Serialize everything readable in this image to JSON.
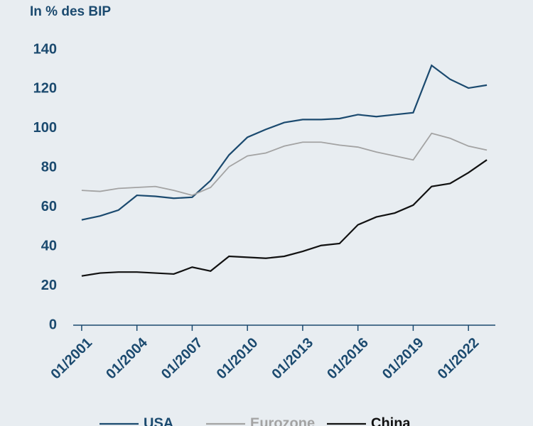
{
  "chart_data": {
    "type": "line",
    "y_label": "In % des BIP",
    "x": [
      2001,
      2002,
      2003,
      2004,
      2005,
      2006,
      2007,
      2008,
      2009,
      2010,
      2011,
      2012,
      2013,
      2014,
      2015,
      2016,
      2017,
      2018,
      2019,
      2020,
      2021,
      2022,
      2023
    ],
    "xlim": [
      2000.54,
      2023.46
    ],
    "xticks": [
      {
        "value": 2001,
        "label": "01/2001"
      },
      {
        "value": 2004,
        "label": "01/2004"
      },
      {
        "value": 2007,
        "label": "01/2007"
      },
      {
        "value": 2010,
        "label": "01/2010"
      },
      {
        "value": 2013,
        "label": "01/2013"
      },
      {
        "value": 2016,
        "label": "01/2016"
      },
      {
        "value": 2019,
        "label": "01/2019"
      },
      {
        "value": 2022,
        "label": "01/2022"
      }
    ],
    "ylim": [
      0,
      140
    ],
    "yticks": [
      0,
      20,
      40,
      60,
      80,
      100,
      120,
      140
    ],
    "series": [
      {
        "name": "USA",
        "color": "#1b4a6f",
        "values": [
          53.5,
          55.5,
          58.5,
          66,
          65.5,
          64.5,
          65,
          73.5,
          86.5,
          95.5,
          99.5,
          103,
          104.5,
          104.5,
          105,
          107,
          106,
          107,
          108,
          132,
          125,
          120.5,
          122
        ]
      },
      {
        "name": "Eurozone",
        "color": "#a3a3a3",
        "values": [
          68.5,
          68,
          69.5,
          70,
          70.5,
          68.5,
          66,
          70,
          80.5,
          86,
          87.5,
          91,
          93,
          93,
          91.5,
          90.5,
          88,
          86,
          84,
          97.5,
          95,
          91,
          89
        ]
      },
      {
        "name": "China",
        "color": "#111111",
        "values": [
          25,
          26.5,
          27,
          27,
          26.5,
          26,
          29.5,
          27.5,
          35,
          34.5,
          34,
          35,
          37.5,
          40.5,
          41.5,
          51,
          55,
          57,
          61,
          70.5,
          72,
          77.5,
          84
        ]
      }
    ]
  }
}
